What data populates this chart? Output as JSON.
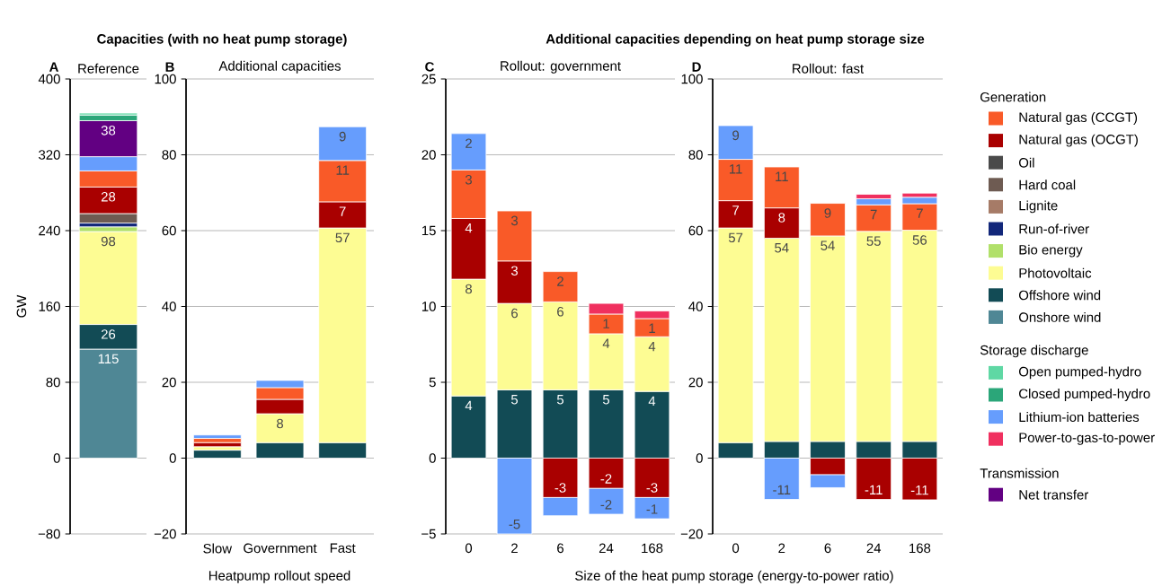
{
  "chart_data": [
    {
      "type": "bar",
      "stacked": true,
      "title": "Capacities (with no heat pump storage)",
      "subtitle": "Reference",
      "ylabel": "GW",
      "annotations": [
        "A"
      ],
      "grid": "y",
      "categories": [
        null
      ],
      "ylim": [
        -80,
        400
      ],
      "yticks": [
        {
          "value": -80,
          "label": "−80"
        },
        0,
        80,
        160,
        240,
        320,
        400
      ],
      "series": [
        {
          "color": "#4f8795",
          "values": [
            115
          ],
          "value_labels": [
            "115"
          ]
        },
        {
          "color": "#124b55",
          "values": [
            26
          ],
          "value_labels": [
            "26"
          ]
        },
        {
          "color": "#fdfc93",
          "values": [
            98
          ],
          "value_labels": [
            "98"
          ]
        },
        {
          "color": "#b1e06a",
          "values": [
            5
          ]
        },
        {
          "color": "#12277a",
          "values": [
            4
          ]
        },
        {
          "color": "#a67b67",
          "values": [
            null
          ]
        },
        {
          "color": "#6e5b52",
          "values": [
            10
          ]
        },
        {
          "color": "#4a4a4a",
          "values": [
            null
          ]
        },
        {
          "color": "#a90000",
          "values": [
            28
          ],
          "value_labels": [
            "28"
          ]
        },
        {
          "color": "#f95a28",
          "values": [
            17
          ]
        },
        {
          "color": "#669dfd",
          "values": [
            15
          ]
        },
        {
          "color": "#f0305f",
          "values": [
            null
          ]
        },
        {
          "color": "#620082",
          "values": [
            38
          ],
          "value_labels": [
            "38"
          ]
        },
        {
          "color": "#2ba679",
          "values": [
            6
          ]
        },
        {
          "color": "#5fd8a4",
          "values": [
            2
          ]
        }
      ]
    },
    {
      "type": "bar",
      "stacked": true,
      "subtitle": "Additional capacities",
      "xlabel": "Heatpump rollout speed",
      "annotations": [
        "B"
      ],
      "grid": "y",
      "categories": [
        "Slow",
        "Government",
        "Fast"
      ],
      "ylim": [
        -20,
        100
      ],
      "yticks": [
        {
          "value": -20,
          "label": "−20"
        },
        0,
        20,
        40,
        60,
        80,
        100
      ],
      "series": [
        {
          "color": "#4f8795",
          "values": [
            null,
            null,
            null
          ]
        },
        {
          "color": "#124b55",
          "values": [
            2.1,
            4.1,
            4.1
          ]
        },
        {
          "color": "#fdfc93",
          "values": [
            0.9,
            7.6,
            56.6
          ],
          "value_labels": [
            null,
            "8",
            "57"
          ]
        },
        {
          "color": "#b1e06a",
          "values": [
            null,
            null,
            null
          ]
        },
        {
          "color": "#12277a",
          "values": [
            null,
            null,
            null
          ]
        },
        {
          "color": "#a67b67",
          "values": [
            null,
            null,
            null
          ]
        },
        {
          "color": "#6e5b52",
          "values": [
            null,
            null,
            null
          ]
        },
        {
          "color": "#4a4a4a",
          "values": [
            null,
            null,
            null
          ]
        },
        {
          "color": "#a90000",
          "values": [
            1.1,
            3.8,
            6.9
          ],
          "value_labels": [
            null,
            null,
            "7"
          ]
        },
        {
          "color": "#f95a28",
          "values": [
            1.1,
            3.1,
            10.9
          ],
          "value_labels": [
            null,
            null,
            "11"
          ]
        },
        {
          "color": "#669dfd",
          "values": [
            0.9,
            1.9,
            8.9
          ],
          "value_labels": [
            null,
            null,
            "9"
          ]
        },
        {
          "color": "#f0305f",
          "values": [
            null,
            null,
            null
          ]
        },
        {
          "color": "#620082",
          "values": [
            null,
            null,
            null
          ]
        },
        {
          "color": "#2ba679",
          "values": [
            null,
            null,
            null
          ]
        },
        {
          "color": "#5fd8a4",
          "values": [
            null,
            null,
            null
          ]
        }
      ]
    },
    {
      "type": "bar",
      "stacked": true,
      "title": "Additional capacities depending on heat pump storage size",
      "subtitle": "Rollout: government",
      "xlabel": "Size of the heat pump storage (energy-to-power ratio)",
      "annotations": [
        "C"
      ],
      "grid": "y",
      "categories": [
        "0",
        "2",
        "6",
        "24",
        "168"
      ],
      "ylim": [
        -5,
        25
      ],
      "yticks": [
        {
          "value": -5,
          "label": "−5"
        },
        0,
        5,
        10,
        15,
        20,
        25
      ],
      "series": [
        {
          "color": "#4f8795",
          "values": [
            null,
            null,
            null,
            null,
            null
          ]
        },
        {
          "color": "#124b55",
          "values": [
            4.1,
            4.5,
            4.5,
            4.5,
            4.4
          ],
          "value_labels": [
            "4",
            "5",
            "5",
            "5",
            "4"
          ]
        },
        {
          "color": "#fdfc93",
          "values": [
            7.7,
            5.7,
            5.8,
            3.7,
            3.6
          ],
          "value_labels": [
            "8",
            "6",
            "6",
            "4",
            "4"
          ]
        },
        {
          "color": "#b1e06a",
          "values": [
            null,
            null,
            null,
            null,
            null
          ]
        },
        {
          "color": "#12277a",
          "values": [
            null,
            null,
            null,
            null,
            null
          ]
        },
        {
          "color": "#a67b67",
          "values": [
            null,
            null,
            null,
            null,
            null
          ]
        },
        {
          "color": "#6e5b52",
          "values": [
            null,
            null,
            null,
            null,
            null
          ]
        },
        {
          "color": "#4a4a4a",
          "values": [
            null,
            null,
            null,
            null,
            null
          ]
        },
        {
          "color": "#a90000",
          "values": [
            4.0,
            2.8,
            -2.6,
            -2.0,
            -2.6
          ],
          "value_labels": [
            "4",
            "3",
            "-3",
            "-2",
            "-3"
          ]
        },
        {
          "color": "#f95a28",
          "values": [
            3.2,
            3.3,
            2.0,
            1.3,
            1.2
          ],
          "value_labels": [
            "3",
            "3",
            "2",
            "1",
            "1"
          ]
        },
        {
          "color": "#669dfd",
          "values": [
            2.4,
            -5.0,
            -1.2,
            -1.7,
            -1.4
          ],
          "value_labels": [
            "2",
            "-5",
            null,
            "-2",
            "-1"
          ]
        },
        {
          "color": "#f0305f",
          "values": [
            null,
            null,
            null,
            0.7,
            0.5
          ]
        },
        {
          "color": "#620082",
          "values": [
            null,
            null,
            null,
            null,
            null
          ]
        },
        {
          "color": "#2ba679",
          "values": [
            null,
            null,
            null,
            null,
            null
          ]
        },
        {
          "color": "#5fd8a4",
          "values": [
            null,
            null,
            null,
            null,
            null
          ]
        }
      ]
    },
    {
      "type": "bar",
      "stacked": true,
      "subtitle": "Rollout: fast",
      "annotations": [
        "D",
        "Generation",
        "Storage discharge",
        "Transmission"
      ],
      "grid": "y",
      "legend": "right",
      "categories": [
        "0",
        "2",
        "6",
        "24",
        "168"
      ],
      "ylim": [
        -20,
        100
      ],
      "yticks": [
        {
          "value": -20,
          "label": "−20"
        },
        0,
        20,
        40,
        60,
        80,
        100
      ],
      "series": [
        {
          "name": "Onshore wind",
          "color": "#4f8795",
          "values": [
            null,
            null,
            null,
            null,
            null
          ]
        },
        {
          "name": "Offshore wind",
          "color": "#124b55",
          "values": [
            4.1,
            4.4,
            4.4,
            4.4,
            4.4
          ]
        },
        {
          "name": "Photovoltaic",
          "color": "#fdfc93",
          "values": [
            56.6,
            53.6,
            54.2,
            55.4,
            55.7
          ],
          "value_labels": [
            "57",
            "54",
            "54",
            "55",
            "56"
          ]
        },
        {
          "name": "Bio energy",
          "color": "#b1e06a",
          "values": [
            null,
            null,
            null,
            null,
            null
          ]
        },
        {
          "name": "Run-of-river",
          "color": "#12277a",
          "values": [
            null,
            null,
            null,
            null,
            null
          ]
        },
        {
          "name": "Lignite",
          "color": "#a67b67",
          "values": [
            null,
            null,
            null,
            null,
            null
          ]
        },
        {
          "name": "Hard coal",
          "color": "#6e5b52",
          "values": [
            null,
            null,
            null,
            null,
            null
          ]
        },
        {
          "name": "Oil",
          "color": "#4a4a4a",
          "values": [
            null,
            null,
            null,
            null,
            null
          ]
        },
        {
          "name": "Natural gas (OCGT)",
          "color": "#a90000",
          "values": [
            7.2,
            8.0,
            -4.4,
            -10.9,
            -11.0
          ],
          "value_labels": [
            "7",
            "8",
            null,
            "-11",
            "-11"
          ]
        },
        {
          "name": "Natural gas (CCGT)",
          "color": "#f95a28",
          "values": [
            10.9,
            10.8,
            8.6,
            7.0,
            7.0
          ],
          "value_labels": [
            "11",
            "11",
            "9",
            "7",
            "7"
          ]
        },
        {
          "name": "Lithium-ion batteries",
          "color": "#669dfd",
          "values": [
            8.9,
            -10.9,
            -3.4,
            1.6,
            1.7
          ],
          "value_labels": [
            "9",
            "-11",
            null,
            null,
            null
          ]
        },
        {
          "name": "Power-to-gas-to-power",
          "color": "#f0305f",
          "values": [
            null,
            null,
            null,
            1.2,
            1.1
          ]
        },
        {
          "name": "Net transfer",
          "color": "#620082",
          "values": [
            null,
            null,
            null,
            null,
            null
          ]
        },
        {
          "name": "Closed pumped-hydro",
          "color": "#2ba679",
          "values": [
            null,
            null,
            null,
            null,
            null
          ]
        },
        {
          "name": "Open pumped-hydro",
          "color": "#5fd8a4",
          "values": [
            null,
            null,
            null,
            null,
            null
          ]
        }
      ]
    }
  ]
}
